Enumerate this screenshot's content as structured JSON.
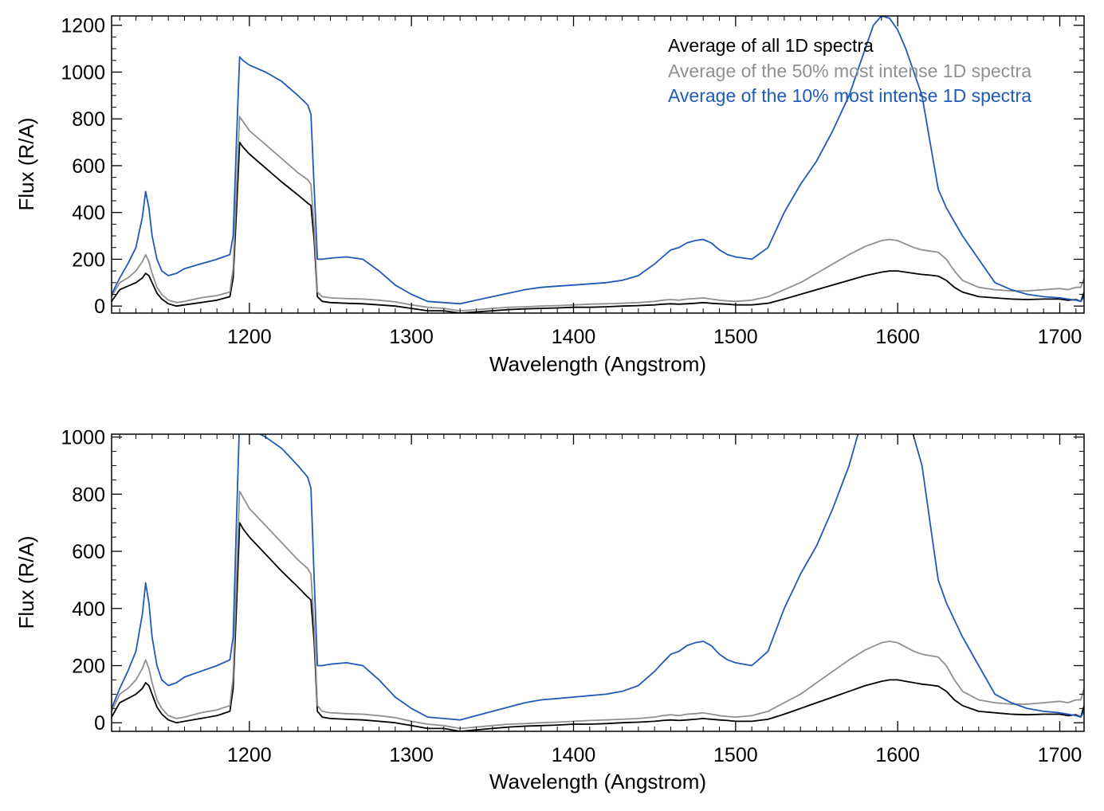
{
  "chart_data": [
    {
      "type": "line",
      "xlabel": "Wavelength (Angstrom)",
      "ylabel": "Flux (R/A)",
      "xlim": [
        1115,
        1715
      ],
      "ylim": [
        -30,
        1240
      ],
      "xticks": [
        1200,
        1300,
        1400,
        1500,
        1600,
        1700
      ],
      "xtick_labels": [
        "1200",
        "1300",
        "1400",
        "1500",
        "1600",
        "1700"
      ],
      "yticks": [
        0,
        200,
        400,
        600,
        800,
        1000,
        1200
      ],
      "ytick_labels": [
        "0",
        "200",
        "400",
        "600",
        "800",
        "1000",
        "1200"
      ],
      "x_minor_step": 10,
      "y_minor_step": 50,
      "legend_position": "top-right",
      "legend": [
        "Average of all 1D spectra",
        "Average of the 50% most intense 1D spectra",
        "Average of the 10% most intense 1D spectra"
      ],
      "series": [
        {
          "name": "Average of all 1D spectra",
          "color": "#000000",
          "x": [
            1115,
            1120,
            1125,
            1130,
            1134,
            1136,
            1138,
            1140,
            1143,
            1146,
            1150,
            1155,
            1160,
            1170,
            1180,
            1188,
            1190,
            1192,
            1194,
            1196,
            1200,
            1210,
            1220,
            1230,
            1236,
            1238,
            1240,
            1242,
            1245,
            1250,
            1260,
            1270,
            1280,
            1290,
            1300,
            1310,
            1320,
            1330,
            1340,
            1350,
            1360,
            1370,
            1380,
            1390,
            1400,
            1410,
            1420,
            1430,
            1440,
            1450,
            1455,
            1460,
            1465,
            1470,
            1475,
            1480,
            1485,
            1490,
            1495,
            1500,
            1510,
            1520,
            1530,
            1540,
            1550,
            1560,
            1570,
            1580,
            1590,
            1595,
            1600,
            1605,
            1610,
            1615,
            1620,
            1625,
            1630,
            1635,
            1640,
            1650,
            1660,
            1670,
            1680,
            1690,
            1700,
            1705,
            1710,
            1713,
            1715
          ],
          "y": [
            20,
            70,
            85,
            100,
            120,
            140,
            130,
            100,
            55,
            30,
            10,
            0,
            5,
            15,
            25,
            40,
            120,
            400,
            700,
            680,
            650,
            590,
            530,
            475,
            440,
            430,
            280,
            40,
            20,
            15,
            12,
            10,
            5,
            0,
            -10,
            -20,
            -20,
            -30,
            -25,
            -20,
            -15,
            -12,
            -10,
            -8,
            -5,
            -5,
            -3,
            0,
            2,
            5,
            8,
            10,
            8,
            10,
            12,
            15,
            12,
            10,
            8,
            5,
            5,
            12,
            30,
            50,
            70,
            90,
            110,
            130,
            145,
            150,
            150,
            145,
            140,
            135,
            132,
            128,
            110,
            80,
            60,
            40,
            35,
            30,
            28,
            30,
            30,
            25,
            28,
            20,
            60
          ]
        },
        {
          "name": "Average of the 50% most intense 1D spectra",
          "color": "#909090",
          "x": [
            1115,
            1120,
            1125,
            1130,
            1134,
            1136,
            1138,
            1140,
            1143,
            1146,
            1150,
            1155,
            1160,
            1170,
            1180,
            1188,
            1190,
            1192,
            1194,
            1196,
            1200,
            1210,
            1220,
            1230,
            1236,
            1238,
            1240,
            1242,
            1245,
            1250,
            1260,
            1270,
            1280,
            1290,
            1300,
            1310,
            1320,
            1330,
            1340,
            1350,
            1360,
            1370,
            1380,
            1390,
            1400,
            1410,
            1420,
            1430,
            1440,
            1450,
            1455,
            1460,
            1465,
            1470,
            1475,
            1480,
            1485,
            1490,
            1495,
            1500,
            1510,
            1520,
            1530,
            1540,
            1550,
            1560,
            1570,
            1580,
            1590,
            1595,
            1600,
            1605,
            1610,
            1615,
            1620,
            1625,
            1630,
            1635,
            1640,
            1650,
            1660,
            1670,
            1680,
            1690,
            1700,
            1705,
            1710,
            1713,
            1715
          ],
          "y": [
            40,
            100,
            120,
            150,
            190,
            220,
            190,
            140,
            80,
            50,
            25,
            15,
            20,
            35,
            45,
            60,
            160,
            500,
            810,
            790,
            750,
            690,
            630,
            570,
            540,
            520,
            330,
            60,
            40,
            35,
            32,
            30,
            25,
            18,
            5,
            -5,
            -10,
            -20,
            -15,
            -10,
            -5,
            -3,
            0,
            2,
            5,
            8,
            10,
            12,
            15,
            20,
            25,
            28,
            25,
            30,
            32,
            35,
            30,
            25,
            22,
            20,
            25,
            40,
            70,
            100,
            140,
            180,
            220,
            255,
            280,
            285,
            280,
            265,
            250,
            240,
            235,
            230,
            200,
            150,
            110,
            80,
            70,
            65,
            65,
            70,
            75,
            70,
            80,
            80,
            120
          ]
        },
        {
          "name": "Average of the 10% most intense 1D spectra",
          "color": "#1f5ab8",
          "x": [
            1115,
            1120,
            1125,
            1130,
            1134,
            1136,
            1138,
            1140,
            1143,
            1146,
            1150,
            1155,
            1160,
            1170,
            1180,
            1188,
            1190,
            1192,
            1194,
            1196,
            1200,
            1210,
            1220,
            1230,
            1236,
            1238,
            1240,
            1242,
            1245,
            1250,
            1260,
            1270,
            1280,
            1290,
            1300,
            1310,
            1320,
            1330,
            1340,
            1350,
            1360,
            1370,
            1380,
            1390,
            1400,
            1410,
            1420,
            1430,
            1440,
            1450,
            1455,
            1460,
            1465,
            1470,
            1475,
            1480,
            1485,
            1490,
            1495,
            1500,
            1510,
            1520,
            1530,
            1540,
            1550,
            1560,
            1570,
            1580,
            1585,
            1590,
            1595,
            1600,
            1605,
            1610,
            1615,
            1620,
            1625,
            1630,
            1635,
            1640,
            1650,
            1660,
            1670,
            1680,
            1690,
            1700,
            1705,
            1710,
            1713,
            1715
          ],
          "y": [
            50,
            120,
            180,
            250,
            380,
            490,
            420,
            300,
            200,
            150,
            130,
            140,
            160,
            180,
            200,
            220,
            300,
            700,
            1065,
            1050,
            1030,
            1000,
            960,
            900,
            860,
            820,
            500,
            200,
            200,
            205,
            210,
            200,
            150,
            90,
            50,
            20,
            15,
            10,
            25,
            40,
            55,
            70,
            80,
            85,
            90,
            95,
            100,
            110,
            130,
            180,
            210,
            240,
            250,
            270,
            280,
            285,
            270,
            240,
            220,
            210,
            200,
            250,
            400,
            520,
            620,
            750,
            900,
            1100,
            1200,
            1240,
            1230,
            1180,
            1100,
            1000,
            900,
            700,
            500,
            420,
            360,
            300,
            200,
            100,
            70,
            50,
            40,
            35,
            30,
            25,
            20,
            40
          ]
        }
      ]
    },
    {
      "type": "line",
      "xlabel": "Wavelength (Angstrom)",
      "ylabel": "Flux (R/A)",
      "xlim": [
        1115,
        1715
      ],
      "ylim": [
        -30,
        1010
      ],
      "xticks": [
        1200,
        1300,
        1400,
        1500,
        1600,
        1700
      ],
      "xtick_labels": [
        "1200",
        "1300",
        "1400",
        "1500",
        "1600",
        "1700"
      ],
      "yticks": [
        0,
        200,
        400,
        600,
        800,
        1000
      ],
      "ytick_labels": [
        "0",
        "200",
        "400",
        "600",
        "800",
        "1000"
      ],
      "x_minor_step": 10,
      "y_minor_step": 50,
      "series_ref": [
        0,
        1,
        2
      ]
    }
  ]
}
